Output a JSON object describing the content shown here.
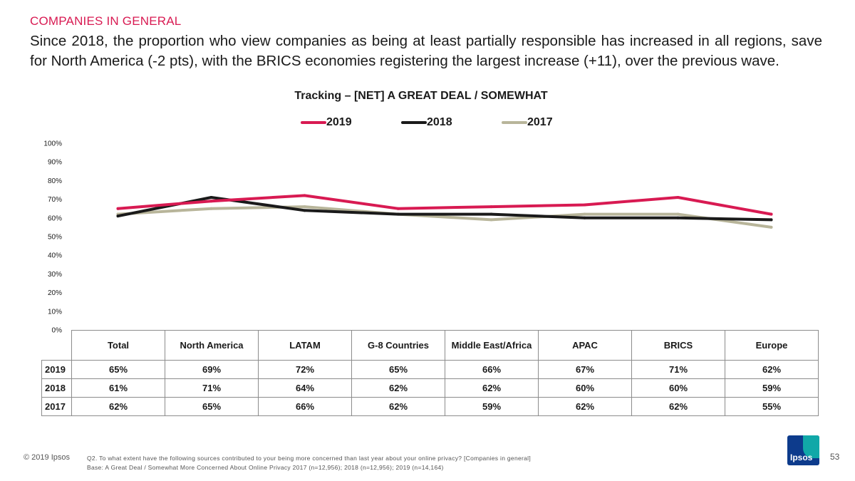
{
  "slide": {
    "section_label": "COMPANIES IN GENERAL",
    "headline": "Since 2018, the proportion who view companies as being at least partially responsible has increased in all regions, save for North America (-2 pts), with the BRICS economies registering the largest increase (+11), over the previous wave.",
    "copyright": "© 2019 Ipsos",
    "question_note": "Q2. To what extent have the following sources contributed to your being more concerned than last year about your online privacy? [Companies in general]",
    "base_note": "Base: A Great Deal / Somewhat More Concerned About Online Privacy 2017 (n=12,956); 2018 (n=12,956); 2019 (n=14,164)",
    "logo_text": "Ipsos",
    "page_number": "53"
  },
  "colors": {
    "accent": "#d81a52",
    "series_2019": "#d81a52",
    "series_2018": "#1a1a1a",
    "series_2017": "#b8b59a",
    "logo_blue": "#0d3b8c",
    "logo_teal": "#11a8a8"
  },
  "chart_data": {
    "type": "line",
    "title": "Tracking – [NET] A GREAT DEAL / SOMEWHAT",
    "categories": [
      "Total",
      "North America",
      "LATAM",
      "G-8 Countries",
      "Middle East/Africa",
      "APAC",
      "BRICS",
      "Europe"
    ],
    "series": [
      {
        "name": "2019",
        "values": [
          65,
          69,
          72,
          65,
          66,
          67,
          71,
          62
        ],
        "labels": [
          "65%",
          "69%",
          "72%",
          "65%",
          "66%",
          "67%",
          "71%",
          "62%"
        ]
      },
      {
        "name": "2018",
        "values": [
          61,
          71,
          64,
          62,
          62,
          60,
          60,
          59
        ],
        "labels": [
          "61%",
          "71%",
          "64%",
          "62%",
          "62%",
          "60%",
          "60%",
          "59%"
        ]
      },
      {
        "name": "2017",
        "values": [
          62,
          65,
          66,
          62,
          59,
          62,
          62,
          55
        ],
        "labels": [
          "62%",
          "65%",
          "66%",
          "62%",
          "59%",
          "62%",
          "62%",
          "55%"
        ]
      }
    ],
    "ylim": [
      0,
      100
    ],
    "yticks": [
      "0%",
      "10%",
      "20%",
      "30%",
      "40%",
      "50%",
      "60%",
      "70%",
      "80%",
      "90%",
      "100%"
    ],
    "grid": false,
    "legend": "top-center"
  }
}
